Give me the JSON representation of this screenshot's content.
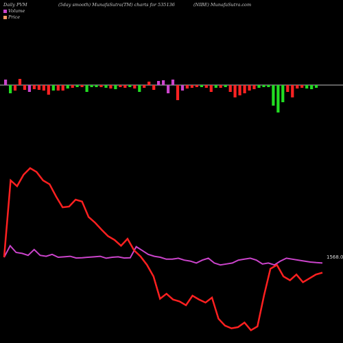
{
  "header": {
    "left": "Daily PVM",
    "center": "(5day smooth) MunafaSutra(TM) charts for 535136",
    "right": "(NIBE) MunafaSutra.com"
  },
  "legend": [
    {
      "label": "Volume",
      "color": "#cc44cc"
    },
    {
      "label": "Price",
      "color": "#ff9966"
    }
  ],
  "colors": {
    "up": "#22dd22",
    "down": "#ff2222",
    "neutral": "#cc44cc",
    "price_line": "#ff2020",
    "volume_line": "#cc44cc",
    "axis": "#ffffff"
  },
  "chart_data": {
    "type": "line",
    "title": "(5day smooth) MunafaSutra(TM) charts for 535136",
    "last_price_label": "1568.03",
    "volume_bars": [
      {
        "v": 8,
        "c": "neutral"
      },
      {
        "v": -12,
        "c": "up"
      },
      {
        "v": -8,
        "c": "down"
      },
      {
        "v": 9,
        "c": "down"
      },
      {
        "v": -7,
        "c": "down"
      },
      {
        "v": -10,
        "c": "neutral"
      },
      {
        "v": -6,
        "c": "down"
      },
      {
        "v": -7,
        "c": "down"
      },
      {
        "v": -8,
        "c": "down"
      },
      {
        "v": -14,
        "c": "down"
      },
      {
        "v": -8,
        "c": "up"
      },
      {
        "v": -8,
        "c": "down"
      },
      {
        "v": -8,
        "c": "down"
      },
      {
        "v": -5,
        "c": "up"
      },
      {
        "v": -4,
        "c": "down"
      },
      {
        "v": -3,
        "c": "up"
      },
      {
        "v": -3,
        "c": "down"
      },
      {
        "v": -10,
        "c": "up"
      },
      {
        "v": -3,
        "c": "up"
      },
      {
        "v": -3,
        "c": "up"
      },
      {
        "v": -3,
        "c": "down"
      },
      {
        "v": -4,
        "c": "up"
      },
      {
        "v": -5,
        "c": "down"
      },
      {
        "v": -6,
        "c": "up"
      },
      {
        "v": -3,
        "c": "down"
      },
      {
        "v": -4,
        "c": "down"
      },
      {
        "v": -3,
        "c": "up"
      },
      {
        "v": -5,
        "c": "down"
      },
      {
        "v": -10,
        "c": "up"
      },
      {
        "v": -4,
        "c": "down"
      },
      {
        "v": 5,
        "c": "down"
      },
      {
        "v": -7,
        "c": "down"
      },
      {
        "v": 6,
        "c": "neutral"
      },
      {
        "v": 7,
        "c": "neutral"
      },
      {
        "v": -12,
        "c": "neutral"
      },
      {
        "v": 8,
        "c": "neutral"
      },
      {
        "v": -22,
        "c": "down"
      },
      {
        "v": -8,
        "c": "neutral"
      },
      {
        "v": -5,
        "c": "down"
      },
      {
        "v": -4,
        "c": "down"
      },
      {
        "v": -3,
        "c": "down"
      },
      {
        "v": -3,
        "c": "up"
      },
      {
        "v": -4,
        "c": "down"
      },
      {
        "v": -10,
        "c": "down"
      },
      {
        "v": -4,
        "c": "up"
      },
      {
        "v": -4,
        "c": "down"
      },
      {
        "v": -3,
        "c": "up"
      },
      {
        "v": -10,
        "c": "down"
      },
      {
        "v": -18,
        "c": "down"
      },
      {
        "v": -15,
        "c": "down"
      },
      {
        "v": -12,
        "c": "down"
      },
      {
        "v": -8,
        "c": "down"
      },
      {
        "v": -6,
        "c": "down"
      },
      {
        "v": -4,
        "c": "up"
      },
      {
        "v": -3,
        "c": "up"
      },
      {
        "v": -3,
        "c": "up"
      },
      {
        "v": -30,
        "c": "up"
      },
      {
        "v": -40,
        "c": "up"
      },
      {
        "v": -25,
        "c": "up"
      },
      {
        "v": -10,
        "c": "down"
      },
      {
        "v": -18,
        "c": "down"
      },
      {
        "v": -5,
        "c": "down"
      },
      {
        "v": -4,
        "c": "down"
      },
      {
        "v": -5,
        "c": "up"
      },
      {
        "v": -6,
        "c": "up"
      },
      {
        "v": -4,
        "c": "up"
      }
    ],
    "price": [
      0,
      200,
      185,
      215,
      232,
      222,
      200,
      190,
      158,
      130,
      132,
      150,
      145,
      105,
      90,
      72,
      55,
      45,
      30,
      48,
      18,
      2,
      -20,
      -50,
      -108,
      -95,
      -110,
      -115,
      -125,
      -100,
      -110,
      -118,
      -105,
      -160,
      -178,
      -185,
      -182,
      -170,
      -190,
      -180,
      -100,
      -30,
      -20,
      -50,
      -60,
      -45,
      -65,
      -55,
      -45,
      -40
    ],
    "volume": [
      0,
      60,
      25,
      20,
      10,
      40,
      10,
      5,
      15,
      0,
      2,
      5,
      -4,
      -3,
      0,
      2,
      5,
      -5,
      0,
      2,
      -4,
      -3,
      55,
      35,
      15,
      5,
      0,
      -10,
      -10,
      -5,
      -15,
      -20,
      -30,
      -15,
      -5,
      -30,
      -40,
      -35,
      -30,
      -15,
      -10,
      -5,
      -15,
      -35,
      -30,
      -40,
      -20,
      -5,
      -10,
      -15,
      -20,
      -25,
      -28,
      -30
    ]
  }
}
